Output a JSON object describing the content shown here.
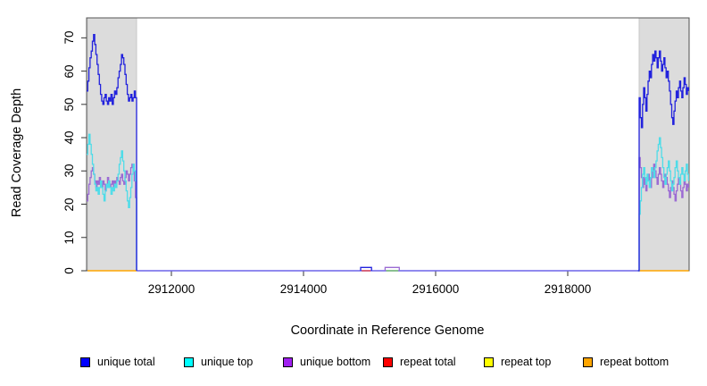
{
  "chart_data": {
    "type": "line",
    "title": "",
    "xlabel": "Coordinate in Reference Genome",
    "ylabel": "Read Coverage Depth",
    "xlim": [
      2910716,
      2919838
    ],
    "ylim": [
      0,
      76
    ],
    "x_ticks": [
      2912000,
      2914000,
      2916000,
      2918000
    ],
    "y_ticks": [
      0,
      10,
      20,
      30,
      40,
      50,
      60,
      70
    ],
    "grid": false,
    "legend_position": "bottom",
    "box_color": "#555555",
    "tick_color": "#333333",
    "shaded_regions": [
      {
        "name": "left-repeat-region",
        "x0": 2910730,
        "x1": 2911473,
        "color": "#DCDCDC",
        "border": "#C9C9C9"
      },
      {
        "name": "right-repeat-region",
        "x0": 2919081,
        "x1": 2919833,
        "color": "#DCDCDC",
        "border": "#C9C9C9"
      }
    ],
    "series": [
      {
        "name": "repeat bottom",
        "color": "#FFA500",
        "width": 1.6,
        "segments": [
          {
            "type": "poly",
            "points": [
              [
                2910730,
                0
              ],
              [
                2911473,
                0
              ]
            ]
          },
          {
            "type": "poly",
            "points": [
              [
                2919081,
                0
              ],
              [
                2919833,
                0
              ]
            ]
          }
        ]
      },
      {
        "name": "unique zero baseline",
        "color": "#6B63E8",
        "width": 1.6,
        "segments": [
          {
            "type": "poly",
            "points": [
              [
                2911473,
                0
              ],
              [
                2919081,
                0
              ]
            ]
          }
        ]
      },
      {
        "name": "repeat total",
        "color": "#E84040",
        "width": 1.3,
        "segments": [
          {
            "type": "poly",
            "points": [
              [
                2914880,
                0
              ],
              [
                2915015,
                0
              ]
            ]
          }
        ]
      },
      {
        "type": "",
        "name": "repeat top",
        "color": "#74C95C",
        "width": 1.3,
        "segments": [
          {
            "type": "poly",
            "points": [
              [
                2915250,
                0
              ],
              [
                2915435,
                0
              ]
            ]
          }
        ]
      },
      {
        "name": "unique bottom",
        "color": "#9B6BD3",
        "width": 1.3,
        "segments": [
          {
            "type": "steps",
            "x0": 2910716,
            "dx": 17.6,
            "values": [
              21,
              23,
              26,
              28,
              30,
              31,
              29,
              27,
              25,
              27,
              26,
              28,
              26,
              25,
              27,
              26,
              24,
              26,
              28,
              27,
              25,
              26,
              27,
              25,
              27,
              26,
              28,
              27,
              26,
              28,
              29,
              27,
              26,
              28,
              30,
              29,
              27,
              29,
              31,
              32,
              30,
              27,
              22,
              0
            ]
          },
          {
            "type": "steps",
            "x0": 2919064,
            "dx": 17,
            "values": [
              0,
              34,
              31,
              28,
              25,
              28,
              26,
              24,
              27,
              29,
              27,
              25,
              28,
              30,
              32,
              30,
              28,
              26,
              29,
              31,
              29,
              27,
              25,
              27,
              29,
              28,
              26,
              24,
              22,
              25,
              27,
              25,
              23,
              21,
              24,
              26,
              28,
              26,
              24,
              22,
              25,
              27,
              26,
              24,
              26,
              25
            ]
          },
          {
            "type": "poly",
            "points": [
              [
                2915235,
                0
              ],
              [
                2915235,
                1
              ],
              [
                2915450,
                1
              ],
              [
                2915450,
                0
              ]
            ]
          }
        ]
      },
      {
        "name": "unique top",
        "color": "#4FDCE8",
        "width": 1.3,
        "segments": [
          {
            "type": "steps",
            "x0": 2910716,
            "dx": 17.6,
            "values": [
              35,
              38,
              41,
              38,
              35,
              32,
              29,
              26,
              24,
              25,
              23,
              25,
              27,
              25,
              23,
              21,
              24,
              26,
              25,
              27,
              25,
              23,
              25,
              24,
              26,
              25,
              27,
              29,
              32,
              34,
              36,
              33,
              30,
              27,
              24,
              21,
              19,
              22,
              25,
              29,
              32,
              30,
              27,
              0
            ]
          },
          {
            "type": "steps",
            "x0": 2919064,
            "dx": 17,
            "values": [
              0,
              17,
              21,
              25,
              29,
              31,
              28,
              26,
              29,
              27,
              25,
              28,
              31,
              30,
              28,
              31,
              33,
              36,
              38,
              40,
              37,
              34,
              31,
              28,
              26,
              29,
              31,
              33,
              30,
              27,
              24,
              26,
              28,
              31,
              33,
              30,
              28,
              26,
              29,
              31,
              29,
              27,
              30,
              32,
              29,
              27
            ]
          }
        ]
      },
      {
        "name": "unique total",
        "color": "#2222DD",
        "width": 1.3,
        "segments": [
          {
            "type": "steps",
            "x0": 2910716,
            "dx": 17.6,
            "values": [
              54,
              57,
              61,
              64,
              66,
              69,
              71,
              68,
              65,
              62,
              59,
              56,
              53,
              51,
              50,
              52,
              53,
              51,
              50,
              52,
              51,
              53,
              50,
              52,
              54,
              53,
              55,
              58,
              60,
              62,
              65,
              64,
              62,
              59,
              56,
              53,
              51,
              52,
              53,
              51,
              52,
              54,
              52,
              0
            ]
          },
          {
            "type": "steps",
            "x0": 2919064,
            "dx": 17,
            "values": [
              0,
              52,
              46,
              43,
              50,
              55,
              52,
              48,
              53,
              57,
              60,
              58,
              62,
              65,
              63,
              66,
              64,
              61,
              64,
              66,
              63,
              60,
              62,
              64,
              61,
              58,
              60,
              57,
              54,
              50,
              46,
              44,
              48,
              51,
              54,
              52,
              55,
              57,
              54,
              52,
              55,
              58,
              56,
              53,
              55,
              54
            ]
          },
          {
            "type": "poly",
            "points": [
              [
                2914865,
                0
              ],
              [
                2914865,
                1
              ],
              [
                2915030,
                1
              ],
              [
                2915030,
                0
              ]
            ]
          }
        ]
      }
    ],
    "legend": [
      {
        "label": "unique total",
        "color": "#0000FF"
      },
      {
        "label": "unique top",
        "color": "#00FFFF"
      },
      {
        "label": "unique bottom",
        "color": "#A020F0"
      },
      {
        "label": "repeat total",
        "color": "#FF0000"
      },
      {
        "label": "repeat top",
        "color": "#FFFF00"
      },
      {
        "label": "repeat bottom",
        "color": "#FFA500"
      }
    ]
  }
}
